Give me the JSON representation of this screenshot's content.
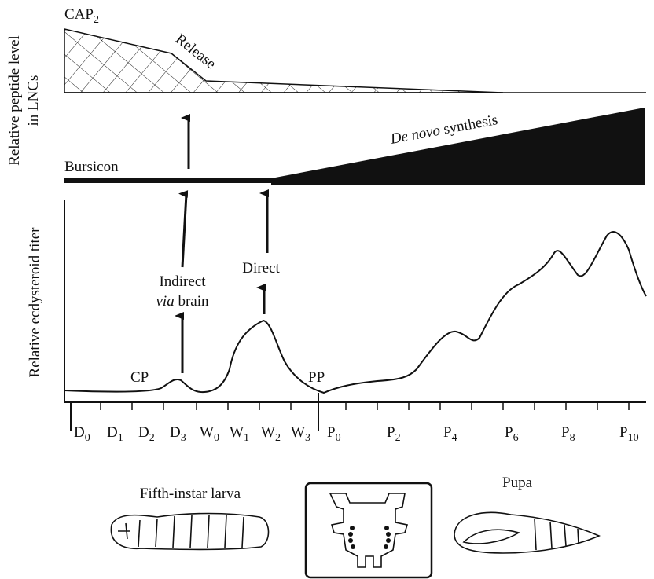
{
  "panels": {
    "peptide": {
      "y_label": [
        "Relative peptide level",
        "in LNCs"
      ],
      "cap": {
        "base": "CAP",
        "sub": "2"
      },
      "release": "Release",
      "bursicon": "Bursicon",
      "synthesis": {
        "italic": "De novo",
        "rest": "synthesis"
      }
    },
    "ecdysteroid": {
      "y_label": "Relative ecdysteroid titer",
      "cp": "CP",
      "pp": "PP",
      "indirect": {
        "line1": "Indirect",
        "italic": "via",
        "rest": "brain"
      },
      "direct": "Direct"
    }
  },
  "axis_labels": [
    {
      "base": "D",
      "sub": "0"
    },
    {
      "base": "D",
      "sub": "1"
    },
    {
      "base": "D",
      "sub": "2"
    },
    {
      "base": "D",
      "sub": "3"
    },
    {
      "base": "W",
      "sub": "0"
    },
    {
      "base": "W",
      "sub": "1"
    },
    {
      "base": "W",
      "sub": "2"
    },
    {
      "base": "W",
      "sub": "3"
    },
    {
      "base": "P",
      "sub": "0"
    },
    {
      "base": "P",
      "sub": "2"
    },
    {
      "base": "P",
      "sub": "4"
    },
    {
      "base": "P",
      "sub": "6"
    },
    {
      "base": "P",
      "sub": "8"
    },
    {
      "base": "P",
      "sub": "10"
    }
  ],
  "illustrations": {
    "larva": "Fifth-instar larva",
    "pupa": "Pupa"
  }
}
